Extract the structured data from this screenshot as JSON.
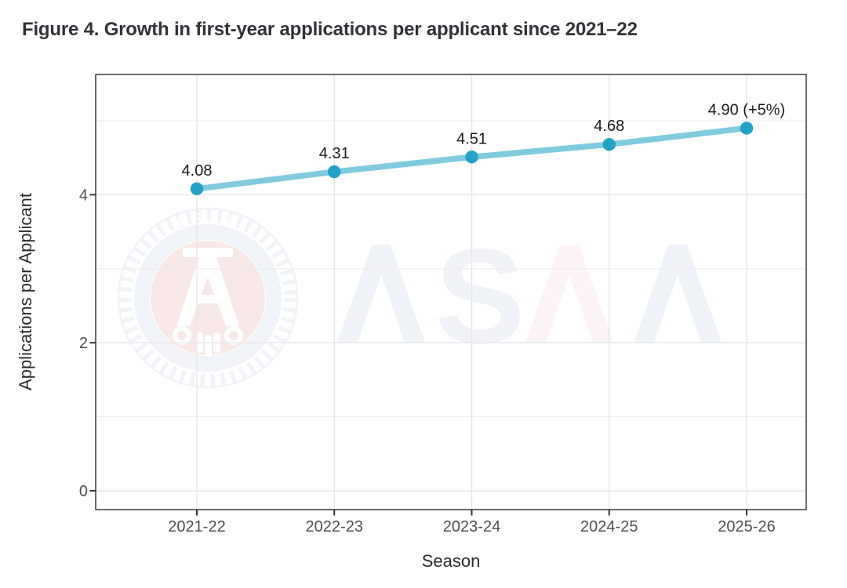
{
  "figure": {
    "title": "Figure 4. Growth in first-year applications per applicant since 2021–22"
  },
  "chart_data": {
    "type": "line",
    "title": "Figure 4. Growth in first-year applications per applicant since 2021–22",
    "xlabel": "Season",
    "ylabel": "Applications per Applicant",
    "categories": [
      "2021-22",
      "2022-23",
      "2023-24",
      "2024-25",
      "2025-26"
    ],
    "series": [
      {
        "name": "Applications per Applicant",
        "values": [
          4.08,
          4.31,
          4.51,
          4.68,
          4.9
        ],
        "point_labels": [
          "4.08",
          "4.31",
          "4.51",
          "4.68",
          "4.90 (+5%)"
        ],
        "line_color": "#80cbdf",
        "marker_color": "#21a3c8"
      }
    ],
    "ylim": [
      -0.25,
      5.62
    ],
    "yticks": [
      0,
      2,
      4
    ],
    "ytick_labels": [
      "0",
      "2",
      "4"
    ],
    "y_minor_gridlines": [
      1,
      3,
      5
    ],
    "grid": "on",
    "legend": "none"
  },
  "watermark": {
    "seal_arc_text": "ASAA",
    "wordmark": "ASAA",
    "wordmark_letter_s": "S",
    "blue": "#2e5a8f",
    "red": "#c43d3d"
  },
  "colors": {
    "title_text": "#2f3337",
    "axis_title_text": "#2a2a2a",
    "tick_label_text": "#4e4e4e",
    "data_label_text": "#1b1b1b",
    "panel_border": "#454545",
    "grid_major": "#e6e6e6",
    "grid_minor": "#ededed",
    "tick_mark": "#333333",
    "background": "#ffffff"
  }
}
